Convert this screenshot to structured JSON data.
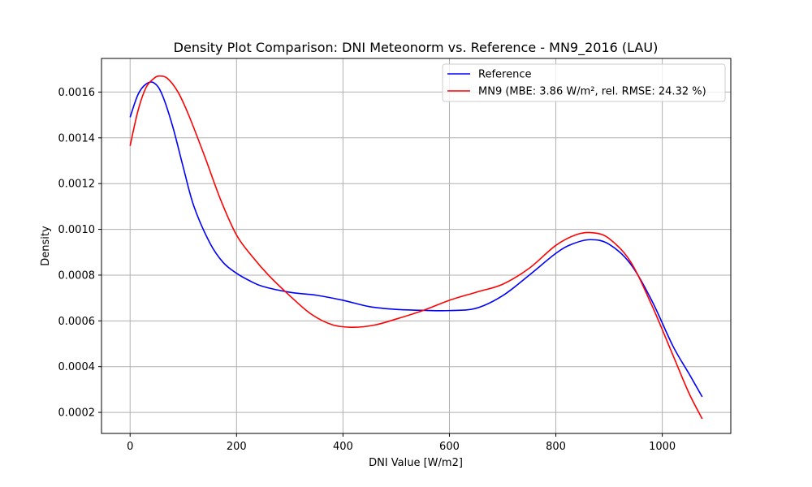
{
  "chart_data": {
    "type": "line",
    "title": "Density Plot Comparison: DNI Meteonorm vs. Reference - MN9_2016 (LAU)",
    "xlabel": "DNI Value [W/m2]",
    "ylabel": "Density",
    "xlim": [
      -53.75,
      1128.75
    ],
    "ylim": [
      0.000108,
      0.001747
    ],
    "xticks": [
      0,
      200,
      400,
      600,
      800,
      1000
    ],
    "yticks": [
      0.0002,
      0.0004,
      0.0006,
      0.0008,
      0.001,
      0.0012,
      0.0014,
      0.0016
    ],
    "ytick_labels": [
      "0.0002",
      "0.0004",
      "0.0006",
      "0.0008",
      "0.0010",
      "0.0012",
      "0.0014",
      "0.0016"
    ],
    "grid": true,
    "legend_position": "top-right",
    "series": [
      {
        "name": "Reference",
        "color": "#0000ff",
        "x": [
          0,
          15,
          30,
          45,
          60,
          80,
          100,
          120,
          150,
          175,
          200,
          225,
          250,
          300,
          350,
          400,
          450,
          500,
          550,
          600,
          650,
          700,
          750,
          800,
          830,
          865,
          900,
          940,
          980,
          1020,
          1050,
          1075
        ],
        "y": [
          0.00149,
          0.00159,
          0.001635,
          0.00164,
          0.00159,
          0.00145,
          0.00127,
          0.0011,
          0.00094,
          0.000855,
          0.000808,
          0.000775,
          0.00075,
          0.000725,
          0.000712,
          0.00069,
          0.000662,
          0.00065,
          0.000646,
          0.000645,
          0.000655,
          0.00071,
          0.0008,
          0.000895,
          0.000935,
          0.000955,
          0.000935,
          0.00085,
          0.00069,
          0.00049,
          0.00037,
          0.000268
        ]
      },
      {
        "name": "MN9 (MBE: 3.86 W/m², rel. RMSE: 24.32 %)",
        "color": "#ff0000",
        "x": [
          0,
          15,
          30,
          45,
          55,
          70,
          90,
          110,
          140,
          170,
          200,
          230,
          260,
          300,
          340,
          380,
          420,
          460,
          500,
          550,
          600,
          650,
          700,
          750,
          800,
          840,
          870,
          900,
          940,
          980,
          1020,
          1050,
          1075
        ],
        "y": [
          0.001365,
          0.00152,
          0.00162,
          0.00166,
          0.00167,
          0.00166,
          0.0016,
          0.0015,
          0.00132,
          0.00113,
          0.000975,
          0.00088,
          0.0008,
          0.00071,
          0.00063,
          0.000583,
          0.000572,
          0.000582,
          0.000608,
          0.000645,
          0.00069,
          0.000725,
          0.00076,
          0.00083,
          0.00093,
          0.000978,
          0.000985,
          0.00096,
          0.00086,
          0.00067,
          0.00045,
          0.000285,
          0.000172
        ]
      }
    ]
  }
}
